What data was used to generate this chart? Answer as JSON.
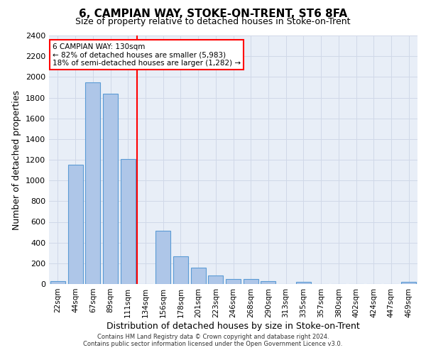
{
  "title": "6, CAMPIAN WAY, STOKE-ON-TRENT, ST6 8FA",
  "subtitle": "Size of property relative to detached houses in Stoke-on-Trent",
  "xlabel": "Distribution of detached houses by size in Stoke-on-Trent",
  "ylabel": "Number of detached properties",
  "bar_labels": [
    "22sqm",
    "44sqm",
    "67sqm",
    "89sqm",
    "111sqm",
    "134sqm",
    "156sqm",
    "178sqm",
    "201sqm",
    "223sqm",
    "246sqm",
    "268sqm",
    "290sqm",
    "313sqm",
    "335sqm",
    "357sqm",
    "380sqm",
    "402sqm",
    "424sqm",
    "447sqm",
    "469sqm"
  ],
  "bar_values": [
    30,
    1150,
    1950,
    1840,
    1210,
    0,
    515,
    265,
    155,
    80,
    50,
    45,
    25,
    0,
    20,
    0,
    0,
    0,
    0,
    0,
    20
  ],
  "bar_color": "#aec6e8",
  "bar_edge_color": "#5b9bd5",
  "vline_color": "red",
  "annotation_text": "6 CAMPIAN WAY: 130sqm\n← 82% of detached houses are smaller (5,983)\n18% of semi-detached houses are larger (1,282) →",
  "annotation_box_color": "white",
  "annotation_box_edge_color": "red",
  "ylim": [
    0,
    2400
  ],
  "yticks": [
    0,
    200,
    400,
    600,
    800,
    1000,
    1200,
    1400,
    1600,
    1800,
    2000,
    2200,
    2400
  ],
  "grid_color": "#d0d8e8",
  "background_color": "#e8eef7",
  "footer_line1": "Contains HM Land Registry data © Crown copyright and database right 2024.",
  "footer_line2": "Contains public sector information licensed under the Open Government Licence v3.0.",
  "title_fontsize": 11,
  "subtitle_fontsize": 9,
  "xlabel_fontsize": 9,
  "ylabel_fontsize": 9,
  "tick_fontsize": 7.5,
  "annotation_fontsize": 7.5,
  "footer_fontsize": 6
}
